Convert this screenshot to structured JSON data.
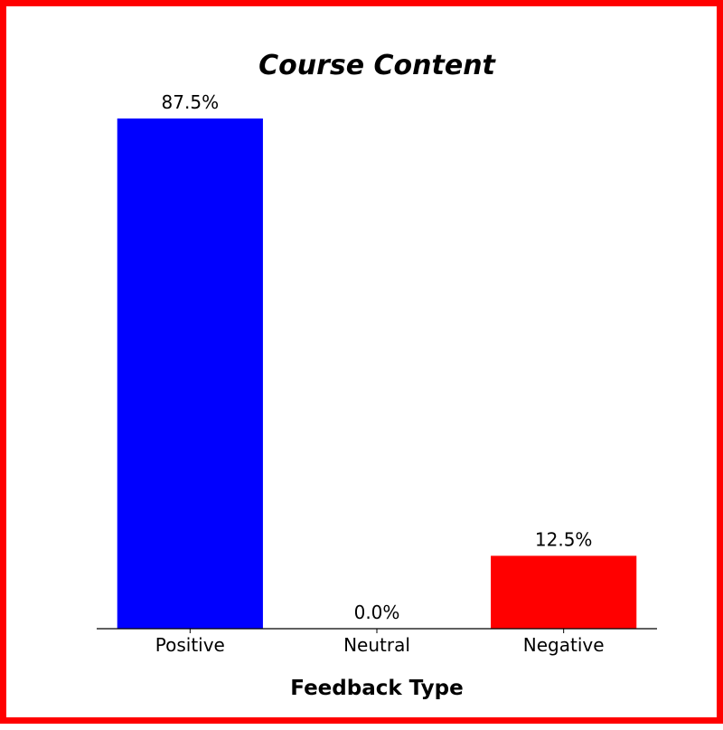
{
  "chart_data": {
    "type": "bar",
    "title": "Course Content",
    "xlabel": "Feedback Type",
    "ylabel": "",
    "categories": [
      "Positive",
      "Neutral",
      "Negative"
    ],
    "values": [
      87.5,
      0.0,
      12.5
    ],
    "value_labels": [
      "87.5%",
      "0.0%",
      "12.5%"
    ],
    "colors": [
      "#0000ff",
      "#808080",
      "#ff0000"
    ],
    "ylim": [
      0,
      87.5
    ],
    "grid": false,
    "legend": "none",
    "y_axis_visible": false
  },
  "frame": {
    "border_color": "#ff0000"
  }
}
